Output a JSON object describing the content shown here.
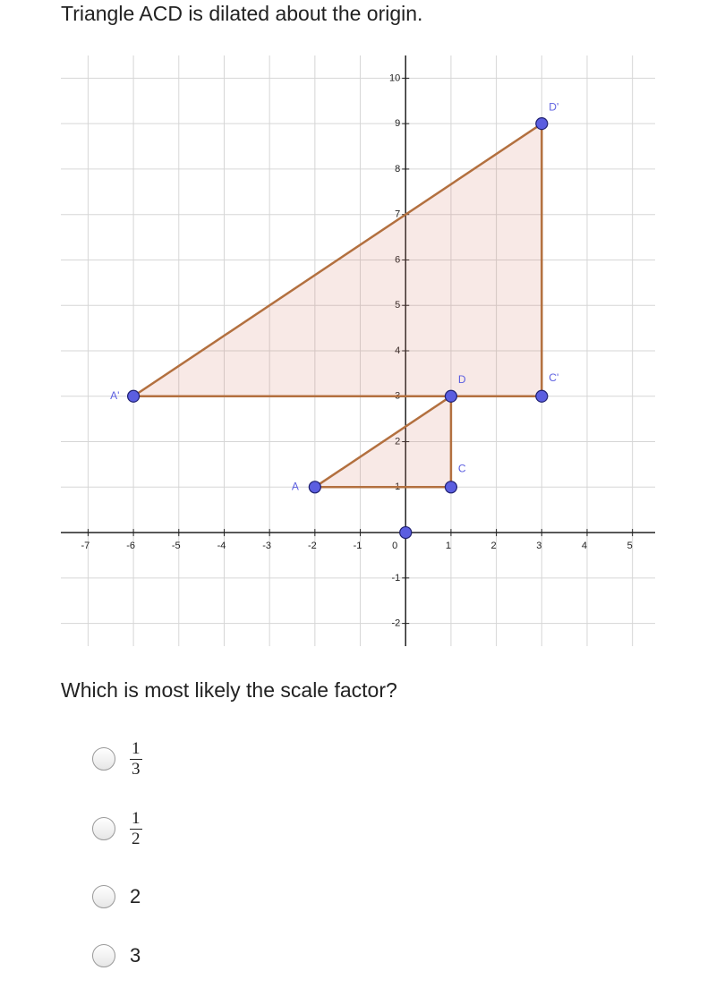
{
  "question": "Triangle ACD is dilated about the origin.",
  "graph": {
    "xlim": [
      -7.6,
      5.5
    ],
    "ylim": [
      -2.5,
      10.5
    ],
    "xticks": [
      -7,
      -6,
      -5,
      -4,
      -3,
      -2,
      -1,
      0,
      1,
      2,
      3,
      4,
      5
    ],
    "yticks": [
      -2,
      -1,
      1,
      2,
      3,
      4,
      5,
      6,
      7,
      8,
      9,
      10
    ],
    "triangles": [
      {
        "vertices": [
          {
            "label": "A",
            "x": -2,
            "y": 1
          },
          {
            "label": "C",
            "x": 1,
            "y": 1
          },
          {
            "label": "D",
            "x": 1,
            "y": 3
          }
        ]
      },
      {
        "vertices": [
          {
            "label": "A'",
            "x": -6,
            "y": 3
          },
          {
            "label": "C'",
            "x": 3,
            "y": 3
          },
          {
            "label": "D'",
            "x": 3,
            "y": 9
          }
        ]
      }
    ],
    "origin": {
      "x": 0,
      "y": 0
    }
  },
  "prompt": "Which is most likely the scale factor?",
  "options": [
    {
      "numerator": "1",
      "denominator": "3"
    },
    {
      "numerator": "1",
      "denominator": "2"
    },
    {
      "text": "2"
    },
    {
      "text": "3"
    }
  ]
}
